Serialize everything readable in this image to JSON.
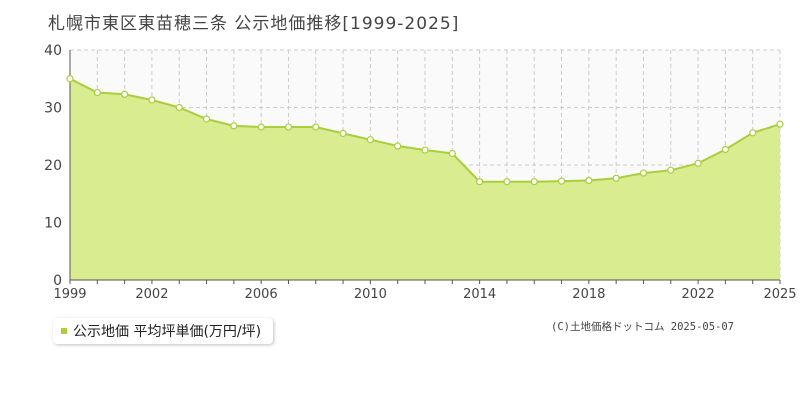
{
  "chart_data": {
    "type": "area",
    "title": "札幌市東区東苗穂三条 公示地価推移[1999-2025]",
    "series": [
      {
        "name": "公示地価 平均坪単価(万円/坪)",
        "x": [
          1999,
          2000,
          2001,
          2002,
          2003,
          2004,
          2005,
          2006,
          2007,
          2008,
          2009,
          2010,
          2011,
          2012,
          2013,
          2014,
          2015,
          2016,
          2017,
          2018,
          2019,
          2020,
          2021,
          2022,
          2023,
          2024,
          2025
        ],
        "values": [
          35.0,
          32.6,
          32.3,
          31.3,
          30.0,
          28.0,
          26.8,
          26.6,
          26.6,
          26.6,
          25.5,
          24.4,
          23.3,
          22.6,
          22.0,
          17.1,
          17.1,
          17.1,
          17.2,
          17.3,
          17.7,
          18.6,
          19.1,
          20.3,
          22.7,
          25.6,
          27.1
        ]
      }
    ],
    "x_ticks": [
      "1999",
      "2002",
      "2006",
      "2010",
      "2014",
      "2018",
      "2022",
      "2025"
    ],
    "y_ticks": [
      "0",
      "10",
      "20",
      "30",
      "40"
    ],
    "ylim": [
      0,
      40
    ],
    "xlim": [
      1999,
      2025
    ],
    "grid": true,
    "legend_position": "bottom-left",
    "colors": {
      "fill": "#d9ec8f",
      "line": "#a8cf3c",
      "marker_fill": "#ffffff",
      "grid": "#cccccc",
      "plot_bg": "#fafafa"
    }
  },
  "legend_label": "公示地価 平均坪単価(万円/坪)",
  "copyright": "(C)土地価格ドットコム 2025-05-07"
}
